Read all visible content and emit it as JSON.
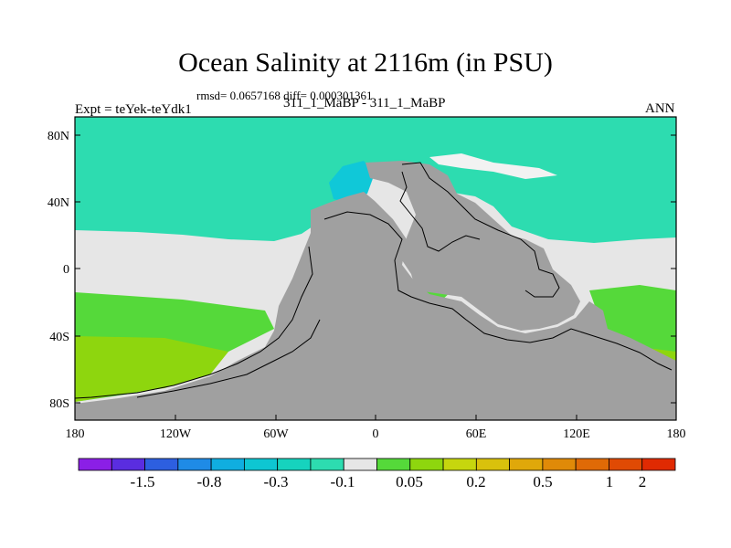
{
  "header": {
    "title": "Ocean Salinity at 2116m (in PSU)",
    "stats": "rmsd= 0.0657168 diff= 0.000301361",
    "experiment": "Expt = teYek-teYdk1",
    "experiment_name": "311_1_MaBP - 311_1_MaBP",
    "season": "ANN"
  },
  "axes": {
    "y_ticks": [
      "80N",
      "40N",
      "0",
      "40S",
      "80S"
    ],
    "x_ticks": [
      "180",
      "120W",
      "60W",
      "0",
      "60E",
      "120E",
      "180"
    ]
  },
  "colorbar": {
    "colors": [
      "#8b1fe6",
      "#5a2de0",
      "#2d5fe0",
      "#1f8be6",
      "#10aee0",
      "#0ec6d2",
      "#16d3be",
      "#2ddcb0",
      "#e6e6e6",
      "#55d93a",
      "#8ed60e",
      "#c6d60e",
      "#d9c10c",
      "#e0a80a",
      "#e08a08",
      "#e06a06",
      "#e04a04",
      "#e02a02"
    ],
    "labels": [
      "-1.5",
      "-0.8",
      "-0.3",
      "-0.1",
      "0.05",
      "0.2",
      "0.5",
      "1",
      "2"
    ]
  },
  "legend_colors": {
    "land": "#a0a0a0",
    "teal": "#2ddcb0",
    "cyan": "#10c8d8",
    "light": "#e6e6e6",
    "green": "#55d93a",
    "yellowgreen": "#8ed60e"
  }
}
